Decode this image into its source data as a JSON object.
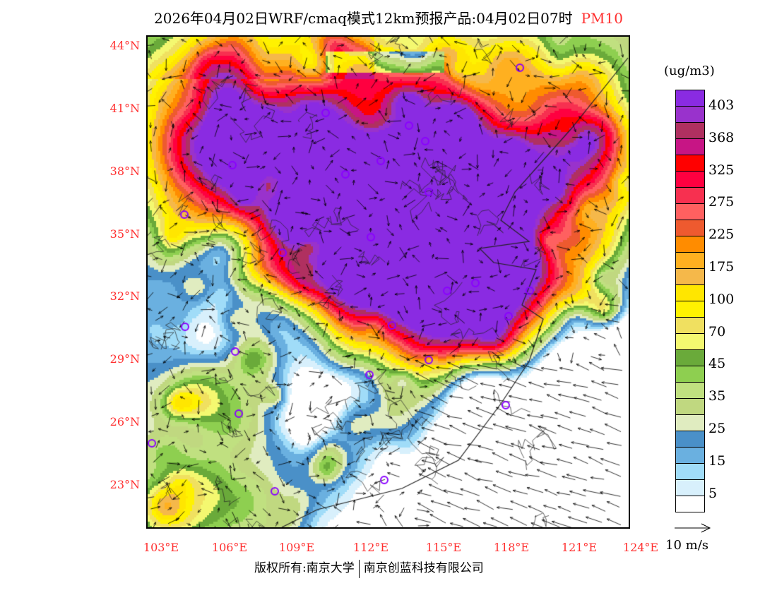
{
  "title": {
    "text": "2026年04月02日WRF/cmaq模式12km预报产品:04月02日07时",
    "pollutant": "PM10"
  },
  "map": {
    "lat_labels": [
      "44°N",
      "41°N",
      "38°N",
      "35°N",
      "32°N",
      "29°N",
      "26°N",
      "23°N"
    ],
    "lon_labels": [
      "103°E",
      "106°E",
      "109°E",
      "112°E",
      "115°E",
      "118°E",
      "121°E",
      "124°E"
    ]
  },
  "colorbar": {
    "unit": "(ug/m3)",
    "colors": [
      "#8a2be2",
      "#9932cc",
      "#b03060",
      "#c71585",
      "#ff0000",
      "#ff0040",
      "#f73050",
      "#ff6060",
      "#ee5a2f",
      "#ff8c00",
      "#ffb020",
      "#f5b84a",
      "#ffe600",
      "#fff200",
      "#f0e060",
      "#f4f870",
      "#6aaa3a",
      "#8ecf50",
      "#c0e080",
      "#c0d880",
      "#e0ecc0",
      "#4a90c8",
      "#6ab0e0",
      "#a0dcf8",
      "#d8f0fc",
      "#ffffff"
    ],
    "labels": [
      "403",
      "368",
      "325",
      "275",
      "225",
      "175",
      "100",
      "70",
      "45",
      "35",
      "25",
      "15",
      "5"
    ]
  },
  "wind_reference": "10 m/s",
  "footer": {
    "left": "版权所有:南京大学",
    "right": "南京创蓝科技有限公司"
  }
}
